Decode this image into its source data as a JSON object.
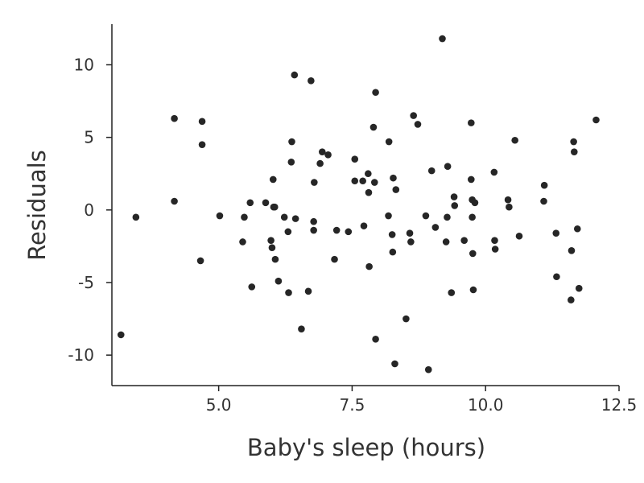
{
  "chart_data": {
    "type": "scatter",
    "title": "",
    "xlabel": "Baby's sleep (hours)",
    "ylabel": "Residuals",
    "xlim": [
      3.0,
      12.5
    ],
    "ylim": [
      -12.1,
      12.8
    ],
    "xticks": [
      5.0,
      7.5,
      10.0,
      12.5
    ],
    "xtick_labels": [
      "5.0",
      "7.5",
      "10.0",
      "12.5"
    ],
    "yticks": [
      10,
      5,
      0,
      -5,
      -10
    ],
    "ytick_labels": [
      "10",
      "5",
      "0",
      "-5",
      "-10"
    ],
    "grid": false,
    "point_color": "#262626",
    "series": [
      {
        "x": [
          3.17,
          3.45,
          4.17,
          4.17,
          4.66,
          4.69,
          4.69,
          5.02,
          5.45,
          5.48,
          5.59,
          5.62,
          5.88,
          5.98,
          6.0,
          6.02,
          6.03,
          6.05,
          6.06,
          6.12,
          6.23,
          6.3,
          6.31,
          6.36,
          6.37,
          6.42,
          6.44,
          6.55,
          6.68,
          6.73,
          6.78,
          6.78,
          6.79,
          6.9,
          6.94,
          7.05,
          7.17,
          7.21,
          7.43,
          7.55,
          7.55,
          7.7,
          7.72,
          7.8,
          7.81,
          7.82,
          7.9,
          7.92,
          7.94,
          7.94,
          8.18,
          8.19,
          8.25,
          8.26,
          8.27,
          8.3,
          8.32,
          8.51,
          8.58,
          8.6,
          8.65,
          8.73,
          8.88,
          8.93,
          8.99,
          9.06,
          9.19,
          9.26,
          9.28,
          9.29,
          9.36,
          9.41,
          9.42,
          9.6,
          9.73,
          9.73,
          9.75,
          9.75,
          9.76,
          9.77,
          9.8,
          10.16,
          10.17,
          10.18,
          10.42,
          10.44,
          10.55,
          10.63,
          11.09,
          11.1,
          11.32,
          11.33,
          11.6,
          11.61,
          11.65,
          11.66,
          11.72,
          11.75,
          12.07
        ],
        "y": [
          -8.6,
          -0.5,
          6.3,
          0.6,
          -3.5,
          6.1,
          4.5,
          -0.4,
          -2.2,
          -0.5,
          0.5,
          -5.3,
          0.5,
          -2.1,
          -2.6,
          2.1,
          0.2,
          0.2,
          -3.4,
          -4.9,
          -0.5,
          -1.5,
          -5.7,
          3.3,
          4.7,
          9.3,
          -0.6,
          -8.2,
          -5.6,
          8.9,
          -0.8,
          -1.4,
          1.9,
          3.2,
          4.0,
          3.8,
          -3.4,
          -1.4,
          -1.5,
          3.5,
          2.0,
          2.0,
          -1.1,
          2.5,
          1.2,
          -3.9,
          5.7,
          1.9,
          -8.9,
          8.1,
          -0.4,
          4.7,
          -1.7,
          -2.9,
          2.2,
          -10.6,
          1.4,
          -7.5,
          -1.6,
          -2.2,
          6.5,
          5.9,
          -0.4,
          -11.0,
          2.7,
          -1.2,
          11.8,
          -2.2,
          -0.5,
          3.0,
          -5.7,
          0.9,
          0.3,
          -2.1,
          2.1,
          6.0,
          -0.5,
          0.7,
          -3.0,
          -5.5,
          0.5,
          2.6,
          -2.1,
          -2.7,
          0.7,
          0.2,
          4.8,
          -1.8,
          0.6,
          1.7,
          -1.6,
          -4.6,
          -6.2,
          -2.8,
          4.7,
          4.0,
          -1.3,
          -5.4,
          6.2
        ]
      }
    ]
  }
}
